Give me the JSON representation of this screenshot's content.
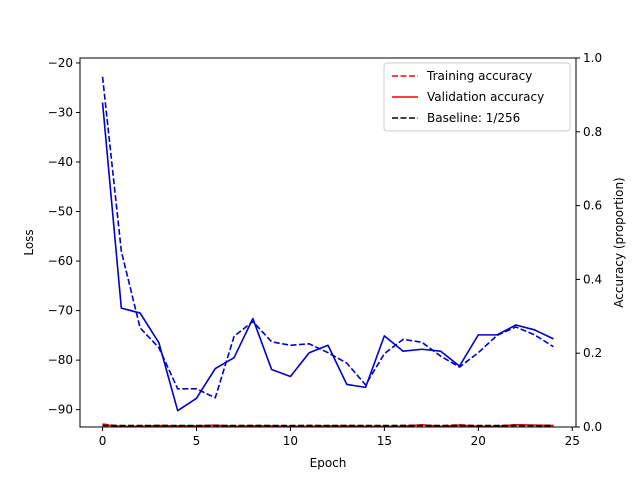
{
  "chart_data": {
    "type": "line",
    "xlabel": "Epoch",
    "ylabel_left": "Loss",
    "ylabel_right": "Accuracy (proportion)",
    "xlim": [
      -1.2,
      25.2
    ],
    "ylim_left": [
      -93.5,
      -19.0
    ],
    "ylim_right": [
      0.0,
      1.0
    ],
    "x_ticks": [
      0,
      5,
      10,
      15,
      20,
      25
    ],
    "y_left_ticks": [
      -90,
      -80,
      -70,
      -60,
      -50,
      -40,
      -30,
      -20
    ],
    "y_right_ticks": [
      0.0,
      0.2,
      0.4,
      0.6,
      0.8,
      1.0
    ],
    "x": [
      0,
      1,
      2,
      3,
      4,
      5,
      6,
      7,
      8,
      9,
      10,
      11,
      12,
      13,
      14,
      15,
      16,
      17,
      18,
      19,
      20,
      21,
      22,
      23,
      24
    ],
    "legend": {
      "position": "top-right",
      "entries": [
        {
          "label": "Training accuracy",
          "color": "#ff0000",
          "dash": "dashed"
        },
        {
          "label": "Validation accuracy",
          "color": "#ff0000",
          "dash": "solid"
        },
        {
          "label": "Baseline: 1/256",
          "color": "#000000",
          "dash": "dashed"
        }
      ]
    },
    "series": [
      {
        "axis": "left",
        "color": "#0000cc",
        "dash": "dashed",
        "values": [
          -22.8,
          -58.0,
          -73.5,
          -77.5,
          -85.8,
          -85.8,
          -87.6,
          -75.2,
          -72.2,
          -76.3,
          -77.0,
          -76.7,
          -78.5,
          -80.6,
          -85.0,
          -78.7,
          -75.8,
          -76.4,
          -79.2,
          -81.4,
          -78.5,
          -75.0,
          -73.3,
          -74.9,
          -77.3
        ]
      },
      {
        "axis": "left",
        "color": "#0000cc",
        "dash": "solid",
        "values": [
          -28.0,
          -69.5,
          -70.5,
          -76.5,
          -90.2,
          -87.7,
          -81.7,
          -79.5,
          -71.6,
          -81.9,
          -83.3,
          -78.5,
          -77.0,
          -84.9,
          -85.5,
          -75.1,
          -78.2,
          -77.8,
          -78.2,
          -81.2,
          -74.9,
          -74.9,
          -72.9,
          -73.9,
          -75.7
        ]
      },
      {
        "axis": "right",
        "color": "#ff0000",
        "dash": "dashed",
        "values": [
          0.008,
          0.002,
          0.002,
          0.004,
          0.003,
          0.002,
          0.004,
          0.003,
          0.004,
          0.003,
          0.003,
          0.004,
          0.003,
          0.004,
          0.003,
          0.003,
          0.004,
          0.005,
          0.003,
          0.006,
          0.003,
          0.003,
          0.006,
          0.004,
          0.004
        ]
      },
      {
        "axis": "right",
        "color": "#ff0000",
        "dash": "solid",
        "values": [
          0.006,
          0.002,
          0.002,
          0.004,
          0.003,
          0.003,
          0.005,
          0.002,
          0.003,
          0.003,
          0.002,
          0.002,
          0.003,
          0.003,
          0.002,
          0.002,
          0.002,
          0.006,
          0.002,
          0.005,
          0.002,
          0.002,
          0.006,
          0.005,
          0.004
        ]
      },
      {
        "axis": "right",
        "color": "#000000",
        "dash": "dashed",
        "values": [
          0.0039,
          0.0039,
          0.0039,
          0.0039,
          0.0039,
          0.0039,
          0.0039,
          0.0039,
          0.0039,
          0.0039,
          0.0039,
          0.0039,
          0.0039,
          0.0039,
          0.0039,
          0.0039,
          0.0039,
          0.0039,
          0.0039,
          0.0039,
          0.0039,
          0.0039,
          0.0039,
          0.0039,
          0.0039
        ]
      }
    ]
  }
}
